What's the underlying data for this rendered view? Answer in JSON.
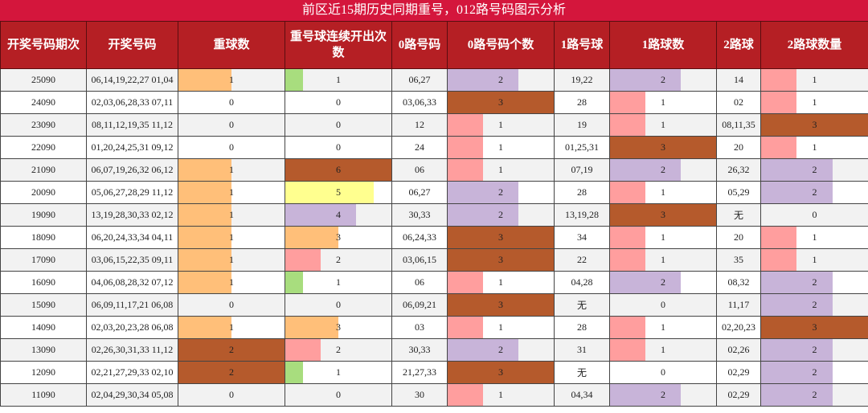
{
  "title": "前区近15期历史同期重号，012路号码图示分析",
  "headers": [
    "开奖号码期次",
    "开奖号码",
    "重球数",
    "重号球连续开出次数",
    "0路号码",
    "0路号码个数",
    "1路号球",
    "1路球数",
    "2路球",
    "2路球数量"
  ],
  "bar_colors": {
    "0": "none",
    "1_repeat": "#ffbf79",
    "1_consec": "#a8dd7e",
    "2": "#ff9e9e",
    "3": "#b55a2c",
    "4": "#c8b4d9",
    "5": "#ffff8f",
    "6": "#b55a2c",
    "road_2": "#c8b4d9",
    "road_1": "#ff9e9e",
    "road_3": "#b55a2c"
  },
  "rows": [
    {
      "issue": "25090",
      "nums": "06,14,19,22,27 01,04",
      "repeat": 1,
      "consec": 1,
      "r0": "06,27",
      "r0n": 2,
      "r1": "19,22",
      "r1n": 2,
      "r2": "14",
      "r2n": 1
    },
    {
      "issue": "24090",
      "nums": "02,03,06,28,33 07,11",
      "repeat": 0,
      "consec": 0,
      "r0": "03,06,33",
      "r0n": 3,
      "r1": "28",
      "r1n": 1,
      "r2": "02",
      "r2n": 1
    },
    {
      "issue": "23090",
      "nums": "08,11,12,19,35 11,12",
      "repeat": 0,
      "consec": 0,
      "r0": "12",
      "r0n": 1,
      "r1": "19",
      "r1n": 1,
      "r2": "08,11,35",
      "r2n": 3
    },
    {
      "issue": "22090",
      "nums": "01,20,24,25,31 09,12",
      "repeat": 0,
      "consec": 0,
      "r0": "24",
      "r0n": 1,
      "r1": "01,25,31",
      "r1n": 3,
      "r2": "20",
      "r2n": 1
    },
    {
      "issue": "21090",
      "nums": "06,07,19,26,32 06,12",
      "repeat": 1,
      "consec": 6,
      "r0": "06",
      "r0n": 1,
      "r1": "07,19",
      "r1n": 2,
      "r2": "26,32",
      "r2n": 2
    },
    {
      "issue": "20090",
      "nums": "05,06,27,28,29 11,12",
      "repeat": 1,
      "consec": 5,
      "r0": "06,27",
      "r0n": 2,
      "r1": "28",
      "r1n": 1,
      "r2": "05,29",
      "r2n": 2
    },
    {
      "issue": "19090",
      "nums": "13,19,28,30,33 02,12",
      "repeat": 1,
      "consec": 4,
      "r0": "30,33",
      "r0n": 2,
      "r1": "13,19,28",
      "r1n": 3,
      "r2": "无",
      "r2n": 0
    },
    {
      "issue": "18090",
      "nums": "06,20,24,33,34 04,11",
      "repeat": 1,
      "consec": 3,
      "r0": "06,24,33",
      "r0n": 3,
      "r1": "34",
      "r1n": 1,
      "r2": "20",
      "r2n": 1
    },
    {
      "issue": "17090",
      "nums": "03,06,15,22,35 09,11",
      "repeat": 1,
      "consec": 2,
      "r0": "03,06,15",
      "r0n": 3,
      "r1": "22",
      "r1n": 1,
      "r2": "35",
      "r2n": 1
    },
    {
      "issue": "16090",
      "nums": "04,06,08,28,32 07,12",
      "repeat": 1,
      "consec": 1,
      "r0": "06",
      "r0n": 1,
      "r1": "04,28",
      "r1n": 2,
      "r2": "08,32",
      "r2n": 2
    },
    {
      "issue": "15090",
      "nums": "06,09,11,17,21 06,08",
      "repeat": 0,
      "consec": 0,
      "r0": "06,09,21",
      "r0n": 3,
      "r1": "无",
      "r1n": 0,
      "r2": "11,17",
      "r2n": 2
    },
    {
      "issue": "14090",
      "nums": "02,03,20,23,28 06,08",
      "repeat": 1,
      "consec": 3,
      "r0": "03",
      "r0n": 1,
      "r1": "28",
      "r1n": 1,
      "r2": "02,20,23",
      "r2n": 3
    },
    {
      "issue": "13090",
      "nums": "02,26,30,31,33 11,12",
      "repeat": 2,
      "consec": 2,
      "r0": "30,33",
      "r0n": 2,
      "r1": "31",
      "r1n": 1,
      "r2": "02,26",
      "r2n": 2
    },
    {
      "issue": "12090",
      "nums": "02,21,27,29,33 02,10",
      "repeat": 2,
      "consec": 1,
      "r0": "21,27,33",
      "r0n": 3,
      "r1": "无",
      "r1n": 0,
      "r2": "02,29",
      "r2n": 2
    },
    {
      "issue": "11090",
      "nums": "02,04,29,30,34 05,08",
      "repeat": 0,
      "consec": 0,
      "r0": "30",
      "r0n": 1,
      "r1": "04,34",
      "r1n": 2,
      "r2": "02,29",
      "r2n": 2
    }
  ]
}
